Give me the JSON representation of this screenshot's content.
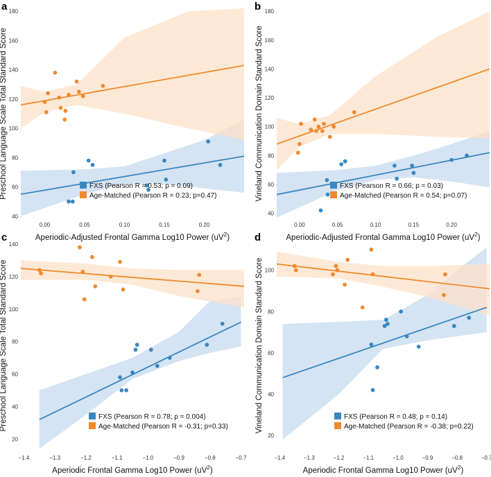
{
  "colors": {
    "fxs": "#3a87c0",
    "age": "#f08a2e",
    "fxs_band": "#c6dbef",
    "age_band": "#fde1c8"
  },
  "chart_data": [
    {
      "type": "scatter",
      "panel_label": "a",
      "xlabel": "Aperiodic-Adjusted Frontal Gamma Log10 Power (uV",
      "xlabel_sup": "2",
      "xlabel_end": ")",
      "ylabel": "Preschool Language Scale Total Standard Score",
      "xlim": [
        -0.03,
        0.25
      ],
      "ylim": [
        38,
        182
      ],
      "xticks": [
        0.0,
        0.05,
        0.1,
        0.15,
        0.2
      ],
      "xtick_labels": [
        "0.00",
        "0.05",
        "0.10",
        "0.15",
        "0.20"
      ],
      "yticks": [
        40,
        60,
        80,
        100,
        120,
        140,
        160,
        180
      ],
      "ytick_labels": [
        "40",
        "60",
        "80",
        "100",
        "120",
        "140",
        "160",
        "180"
      ],
      "series": [
        {
          "name": "FXS",
          "legend": "FXS (Pearson R = 0.53; p = 0.09)",
          "points": [
            [
              0.03,
              50
            ],
            [
              0.035,
              50
            ],
            [
              0.036,
              70
            ],
            [
              0.055,
              78
            ],
            [
              0.06,
              75
            ],
            [
              0.128,
              61
            ],
            [
              0.13,
              58
            ],
            [
              0.15,
              78
            ],
            [
              0.152,
              65
            ],
            [
              0.205,
              91
            ],
            [
              0.22,
              75
            ]
          ],
          "fit": [
            [
              -0.03,
              55
            ],
            [
              0.25,
              81
            ]
          ],
          "ci": [
            [
              -0.03,
              40,
              71
            ],
            [
              0.05,
              55,
              72
            ],
            [
              0.1,
              62,
              74
            ],
            [
              0.15,
              62,
              83
            ],
            [
              0.2,
              59,
              92
            ],
            [
              0.25,
              56,
              106
            ]
          ]
        },
        {
          "name": "Age-Matched",
          "legend": "Age-Matched (Pearson R = 0.23; p=0.47)",
          "points": [
            [
              0.0,
              118
            ],
            [
              0.002,
              111
            ],
            [
              0.004,
              124
            ],
            [
              0.013,
              138
            ],
            [
              0.018,
              121
            ],
            [
              0.02,
              114
            ],
            [
              0.025,
              106
            ],
            [
              0.026,
              112
            ],
            [
              0.03,
              123
            ],
            [
              0.04,
              132
            ],
            [
              0.043,
              125
            ],
            [
              0.048,
              122
            ],
            [
              0.073,
              129
            ]
          ],
          "fit": [
            [
              -0.03,
              116
            ],
            [
              0.25,
              143
            ]
          ],
          "ci": [
            [
              -0.03,
              100,
              129
            ],
            [
              0.0,
              111,
              125
            ],
            [
              0.04,
              116,
              130
            ],
            [
              0.1,
              110,
              162
            ],
            [
              0.18,
              100,
              180
            ],
            [
              0.25,
              92,
              182
            ]
          ]
        }
      ]
    },
    {
      "type": "scatter",
      "panel_label": "b",
      "xlabel": "Aperiodic-Adjusted Frontal Gamma Log10 Power (uV",
      "xlabel_sup": "2",
      "xlabel_end": ")",
      "ylabel": "Vineland Communication Domain Standard Score",
      "xlim": [
        -0.03,
        0.25
      ],
      "ylim": [
        36,
        182
      ],
      "xticks": [
        0.0,
        0.05,
        0.1,
        0.15,
        0.2
      ],
      "xtick_labels": [
        "0.00",
        "0.05",
        "0.10",
        "0.15",
        "0.20"
      ],
      "yticks": [
        40,
        60,
        80,
        100,
        120,
        140,
        160,
        180
      ],
      "ytick_labels": [
        "40",
        "60",
        "80",
        "100",
        "120",
        "140",
        "160",
        "180"
      ],
      "series": [
        {
          "name": "FXS",
          "legend": "FXS (Pearson R = 0.66; p = 0.03)",
          "points": [
            [
              0.028,
              42
            ],
            [
              0.036,
              63
            ],
            [
              0.037,
              53
            ],
            [
              0.055,
              74
            ],
            [
              0.06,
              76
            ],
            [
              0.125,
              73
            ],
            [
              0.128,
              64
            ],
            [
              0.148,
              73
            ],
            [
              0.15,
              68
            ],
            [
              0.2,
              77
            ],
            [
              0.22,
              80
            ]
          ],
          "fit": [
            [
              -0.03,
              53
            ],
            [
              0.25,
              82
            ]
          ],
          "ci": [
            [
              -0.03,
              37,
              68
            ],
            [
              0.05,
              56,
              70
            ],
            [
              0.1,
              63,
              73
            ],
            [
              0.15,
              65,
              80
            ],
            [
              0.2,
              62,
              88
            ],
            [
              0.25,
              58,
              97
            ]
          ]
        },
        {
          "name": "Age-Matched",
          "legend": "Age-Matched (Pearson R = 0.54; p=0.07)",
          "points": [
            [
              -0.002,
              82
            ],
            [
              0.0,
              88
            ],
            [
              0.002,
              102
            ],
            [
              0.015,
              98
            ],
            [
              0.02,
              105
            ],
            [
              0.022,
              97
            ],
            [
              0.025,
              100
            ],
            [
              0.03,
              97
            ],
            [
              0.032,
              102
            ],
            [
              0.04,
              93
            ],
            [
              0.045,
              100
            ],
            [
              0.072,
              110
            ]
          ],
          "fit": [
            [
              -0.03,
              88
            ],
            [
              0.25,
              140
            ]
          ],
          "ci": [
            [
              -0.03,
              70,
              106
            ],
            [
              0.0,
              86,
              102
            ],
            [
              0.04,
              95,
              108
            ],
            [
              0.1,
              95,
              135
            ],
            [
              0.18,
              93,
              162
            ],
            [
              0.25,
              92,
              180
            ]
          ]
        }
      ]
    },
    {
      "type": "scatter",
      "panel_label": "c",
      "xlabel": "Aperiodic Frontal Gamma Log10 Power (uV",
      "xlabel_sup": "2",
      "xlabel_end": ")",
      "ylabel": "Preschool Language Scale Total Standard Score",
      "xlim": [
        -1.41,
        -0.69
      ],
      "ylim": [
        12,
        143
      ],
      "xticks": [
        -1.4,
        -1.3,
        -1.2,
        -1.1,
        -1.0,
        -0.9,
        -0.8,
        -0.7
      ],
      "xtick_labels": [
        "−1.4",
        "−1.3",
        "−1.2",
        "−1.1",
        "−1.0",
        "−0.9",
        "−0.8",
        "−0.7"
      ],
      "yticks": [
        20,
        40,
        60,
        80,
        100,
        120,
        140
      ],
      "ytick_labels": [
        "20",
        "40",
        "60",
        "80",
        "100",
        "120",
        "140"
      ],
      "series": [
        {
          "name": "FXS",
          "legend": "FXS (Pearson R = 0.78; p = 0.004)",
          "points": [
            [
              -1.09,
              58
            ],
            [
              -1.085,
              50
            ],
            [
              -1.07,
              50
            ],
            [
              -1.05,
              61
            ],
            [
              -1.04,
              75
            ],
            [
              -1.035,
              78
            ],
            [
              -0.99,
              75
            ],
            [
              -0.97,
              65
            ],
            [
              -0.93,
              70
            ],
            [
              -0.81,
              78
            ],
            [
              -0.76,
              91
            ]
          ],
          "fit": [
            [
              -1.35,
              32
            ],
            [
              -0.7,
              92
            ]
          ],
          "ci": [
            [
              -1.35,
              14,
              50
            ],
            [
              -1.2,
              35,
              60
            ],
            [
              -1.05,
              57,
              70
            ],
            [
              -0.9,
              68,
              86
            ],
            [
              -0.8,
              73,
              105
            ],
            [
              -0.7,
              77,
              108
            ]
          ]
        },
        {
          "name": "Age-Matched",
          "legend": "Age-Matched (Pearson R = -0.31; p=0.33)",
          "points": [
            [
              -1.35,
              124
            ],
            [
              -1.345,
              122
            ],
            [
              -1.22,
              138
            ],
            [
              -1.21,
              123
            ],
            [
              -1.205,
              106
            ],
            [
              -1.18,
              132
            ],
            [
              -1.17,
              114
            ],
            [
              -1.12,
              120
            ],
            [
              -1.09,
              129
            ],
            [
              -1.08,
              112
            ],
            [
              -0.84,
              111
            ],
            [
              -0.835,
              121
            ]
          ],
          "fit": [
            [
              -1.41,
              125
            ],
            [
              -0.69,
              114
            ]
          ],
          "ci": [
            [
              -1.41,
              118,
              130
            ],
            [
              -1.2,
              118,
              128
            ],
            [
              -1.05,
              115,
              125
            ],
            [
              -0.9,
              108,
              124
            ],
            [
              -0.69,
              101,
              124
            ]
          ]
        }
      ]
    },
    {
      "type": "scatter",
      "panel_label": "d",
      "xlabel": "Aperiodic Frontal Gamma Log10 Power (uV",
      "xlabel_sup": "2",
      "xlabel_end": ")",
      "ylabel": "Vineland Communication Domain Standard Score",
      "xlim": [
        -1.41,
        -0.69
      ],
      "ylim": [
        12,
        115
      ],
      "xticks": [
        -1.4,
        -1.3,
        -1.2,
        -1.1,
        -1.0,
        -0.9,
        -0.8,
        -0.7
      ],
      "xtick_labels": [
        "−1.4",
        "−1.3",
        "−1.2",
        "−1.1",
        "−1.0",
        "−0.9",
        "−0.8",
        "−0.7"
      ],
      "yticks": [
        20,
        40,
        60,
        80,
        100
      ],
      "ytick_labels": [
        "20",
        "40",
        "60",
        "80",
        "100"
      ],
      "series": [
        {
          "name": "FXS",
          "legend": "FXS (Pearson R = 0.48; p = 0.14)",
          "points": [
            [
              -1.09,
              64
            ],
            [
              -1.085,
              42
            ],
            [
              -1.07,
              53
            ],
            [
              -1.045,
              73
            ],
            [
              -1.04,
              76
            ],
            [
              -1.035,
              74
            ],
            [
              -0.99,
              80
            ],
            [
              -0.97,
              68
            ],
            [
              -0.93,
              63
            ],
            [
              -0.81,
              73
            ],
            [
              -0.76,
              77
            ]
          ],
          "fit": [
            [
              -1.39,
              48
            ],
            [
              -0.7,
              82
            ]
          ],
          "ci": [
            [
              -1.39,
              18,
              74
            ],
            [
              -1.2,
              40,
              75
            ],
            [
              -1.05,
              62,
              76
            ],
            [
              -0.9,
              66,
              88
            ],
            [
              -0.8,
              68,
              100
            ],
            [
              -0.7,
              70,
              111
            ]
          ]
        },
        {
          "name": "Age-Matched",
          "legend": "Age-Matched (Pearson R = -0.38; p=0.22)",
          "points": [
            [
              -1.35,
              102
            ],
            [
              -1.345,
              100
            ],
            [
              -1.22,
              98
            ],
            [
              -1.21,
              102
            ],
            [
              -1.205,
              100
            ],
            [
              -1.17,
              105
            ],
            [
              -1.18,
              93
            ],
            [
              -1.12,
              82
            ],
            [
              -1.09,
              110
            ],
            [
              -1.085,
              98
            ],
            [
              -0.845,
              88
            ],
            [
              -0.84,
              98
            ]
          ],
          "fit": [
            [
              -1.41,
              103
            ],
            [
              -0.69,
              91
            ]
          ],
          "ci": [
            [
              -1.41,
              97,
              109
            ],
            [
              -1.2,
              96,
              104
            ],
            [
              -1.05,
              92,
              102
            ],
            [
              -0.9,
              87,
              102
            ],
            [
              -0.69,
              78,
              103
            ]
          ]
        }
      ]
    }
  ]
}
